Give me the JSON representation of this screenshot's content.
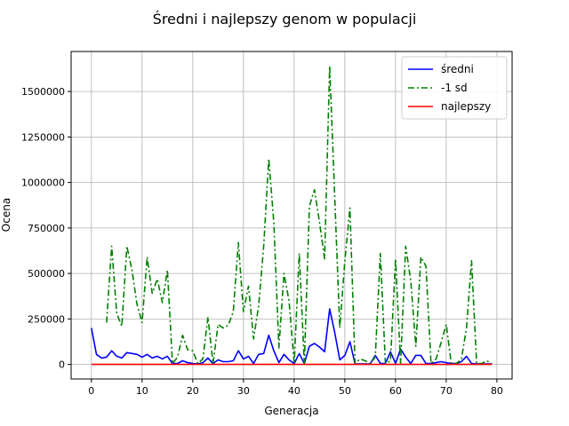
{
  "chart_data": {
    "type": "line",
    "title": "Średni i najlepszy genom w populacji",
    "xlabel": "Generacja",
    "ylabel": "Ocena",
    "xlim": [
      -4,
      83
    ],
    "ylim": [
      -80000,
      1720000
    ],
    "xticks": [
      0,
      10,
      20,
      30,
      40,
      50,
      60,
      70,
      80
    ],
    "yticks": [
      0,
      250000,
      500000,
      750000,
      1000000,
      1250000,
      1500000
    ],
    "grid": true,
    "legend_position": "upper-right",
    "series": [
      {
        "name": "średni",
        "color": "#0000ff",
        "dash": "solid",
        "x": [
          0,
          1,
          2,
          3,
          4,
          5,
          6,
          7,
          8,
          9,
          10,
          11,
          12,
          13,
          14,
          15,
          16,
          17,
          18,
          19,
          20,
          21,
          22,
          23,
          24,
          25,
          26,
          27,
          28,
          29,
          30,
          31,
          32,
          33,
          34,
          35,
          36,
          37,
          38,
          39,
          40,
          41,
          42,
          43,
          44,
          45,
          46,
          47,
          48,
          49,
          50,
          51,
          52,
          53,
          54,
          55,
          56,
          57,
          58,
          59,
          60,
          61,
          62,
          63,
          64,
          65,
          66,
          67,
          68,
          69,
          70,
          71,
          72,
          73,
          74,
          75,
          76,
          77,
          78,
          79
        ],
        "values": [
          200000,
          55000,
          35000,
          40000,
          75000,
          45000,
          35000,
          65000,
          60000,
          55000,
          40000,
          55000,
          35000,
          45000,
          30000,
          45000,
          5000,
          5000,
          20000,
          10000,
          5000,
          3000,
          10000,
          35000,
          5000,
          25000,
          15000,
          15000,
          20000,
          75000,
          30000,
          45000,
          5000,
          55000,
          60000,
          160000,
          75000,
          10000,
          55000,
          25000,
          5000,
          60000,
          5000,
          100000,
          115000,
          95000,
          70000,
          305000,
          175000,
          25000,
          50000,
          125000,
          3000,
          3000,
          3000,
          3000,
          50000,
          5000,
          5000,
          70000,
          5000,
          85000,
          40000,
          5000,
          50000,
          50000,
          5000,
          5000,
          10000,
          15000,
          10000,
          5000,
          5000,
          15000,
          45000,
          5000,
          3000,
          3000,
          3000,
          3000
        ]
      },
      {
        "name": "-1 sd",
        "color": "#008000",
        "dash": "dashdot",
        "x": [
          3,
          4,
          5,
          6,
          7,
          8,
          9,
          10,
          11,
          12,
          13,
          14,
          15,
          16,
          17,
          18,
          19,
          20,
          21,
          22,
          23,
          24,
          25,
          26,
          27,
          28,
          29,
          30,
          31,
          32,
          33,
          34,
          35,
          36,
          37,
          38,
          39,
          40,
          41,
          42,
          43,
          44,
          45,
          46,
          47,
          48,
          49,
          50,
          51,
          52,
          53,
          54,
          55,
          56,
          57,
          58,
          59,
          60,
          61,
          62,
          63,
          64,
          65,
          66,
          67,
          68,
          69,
          70,
          71,
          72,
          73,
          74,
          75,
          76,
          77,
          78,
          79
        ],
        "values": [
          230000,
          650000,
          280000,
          210000,
          650000,
          520000,
          330000,
          230000,
          590000,
          390000,
          470000,
          340000,
          520000,
          5000,
          40000,
          160000,
          80000,
          75000,
          5000,
          30000,
          260000,
          5000,
          220000,
          200000,
          215000,
          290000,
          670000,
          290000,
          430000,
          140000,
          320000,
          650000,
          1130000,
          780000,
          90000,
          500000,
          350000,
          5000,
          610000,
          5000,
          870000,
          960000,
          780000,
          580000,
          1640000,
          920000,
          200000,
          570000,
          860000,
          5000,
          30000,
          20000,
          5000,
          40000,
          610000,
          5000,
          20000,
          580000,
          5000,
          650000,
          460000,
          100000,
          590000,
          540000,
          5000,
          30000,
          120000,
          220000,
          5000,
          5000,
          30000,
          200000,
          570000,
          5000,
          5000,
          20000,
          5000
        ]
      },
      {
        "name": "najlepszy",
        "color": "#ff0000",
        "dash": "solid",
        "x": [
          0,
          79
        ],
        "values": [
          0,
          0
        ]
      }
    ]
  }
}
